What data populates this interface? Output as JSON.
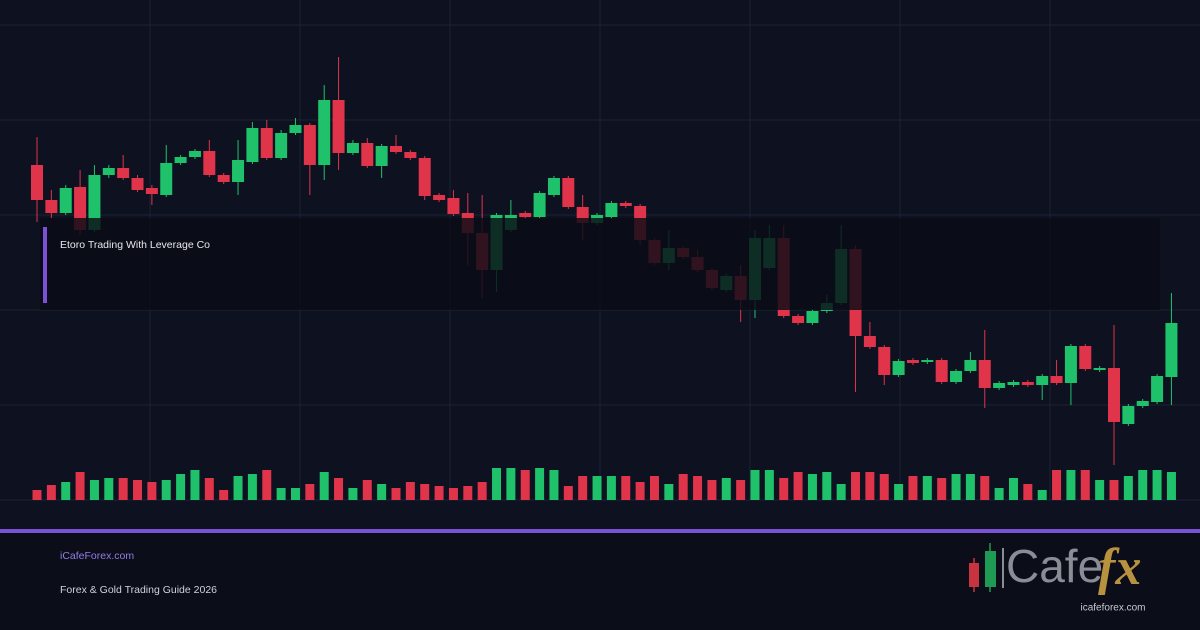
{
  "header": {
    "title": "Etoro Trading With Leverage Co"
  },
  "footer": {
    "site": "iCafeForex.com",
    "subtitle": "Forex & Gold Trading Guide 2026"
  },
  "logo": {
    "word": "Cafe",
    "accent": "fx",
    "url": "icafeforex.com"
  }
}
